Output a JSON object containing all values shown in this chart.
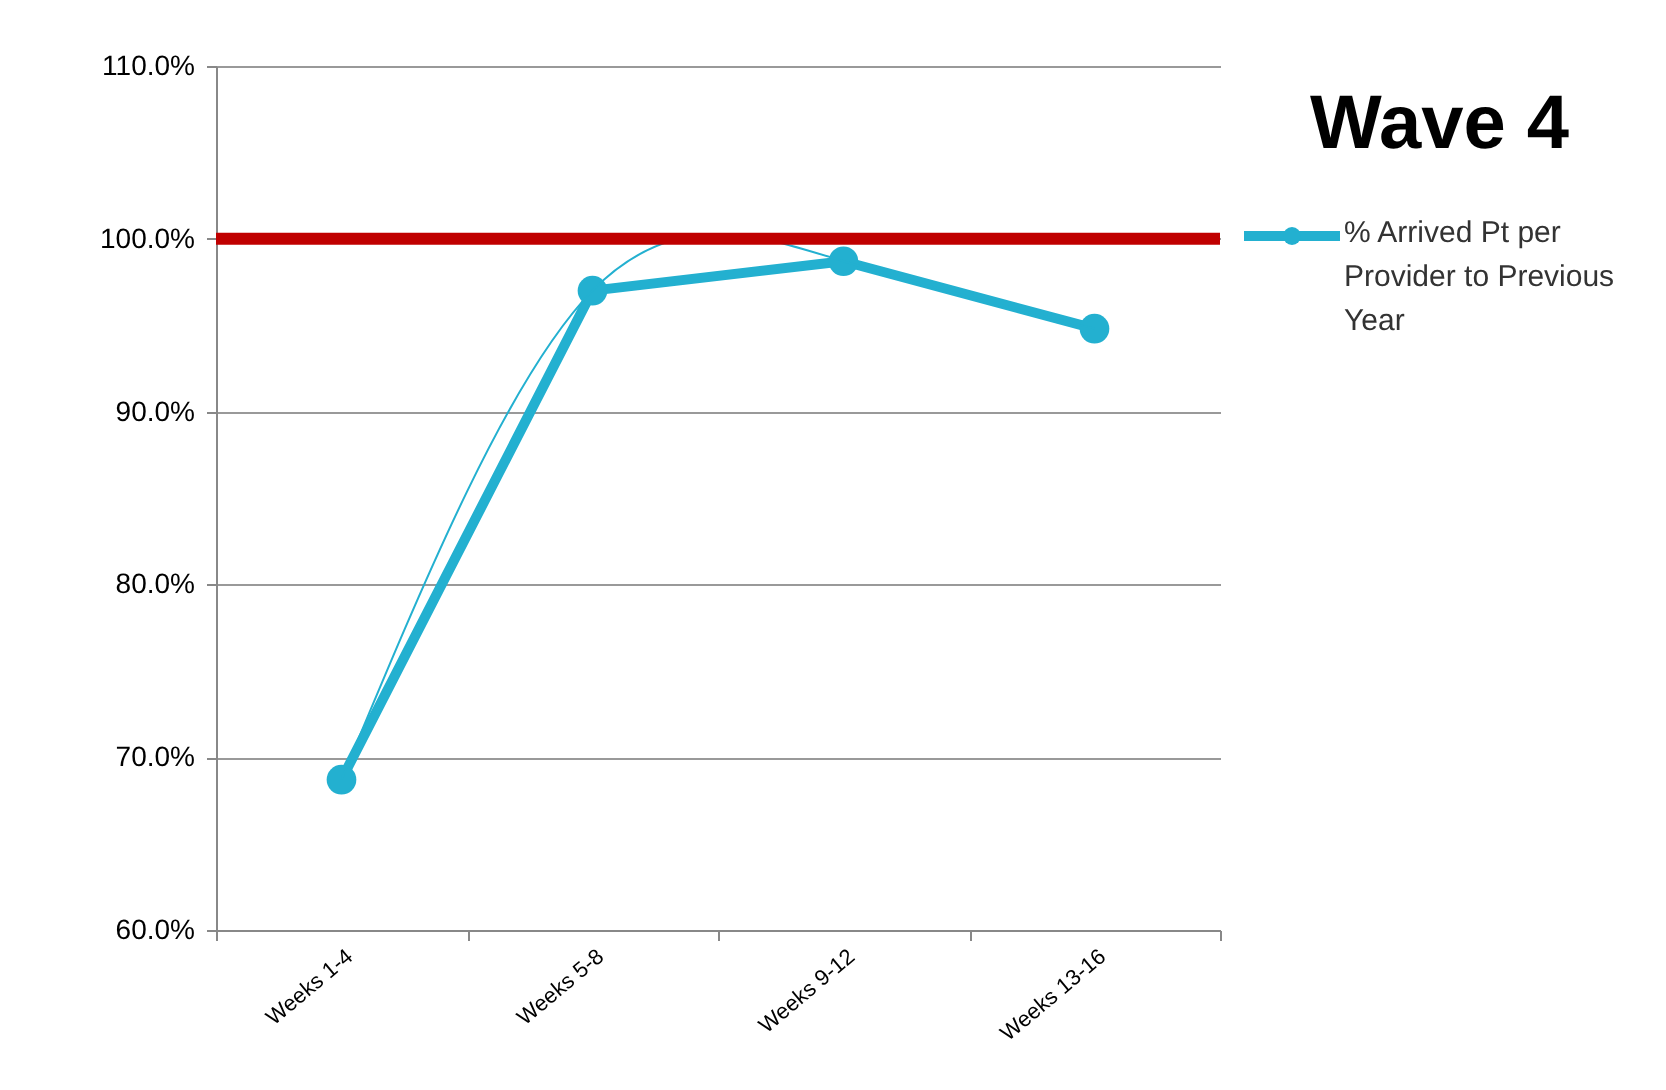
{
  "chart_data": {
    "type": "line",
    "title": "Wave 4",
    "categories": [
      "Weeks 1-4",
      "Weeks 5-8",
      "Weeks 9-12",
      "Weeks 13-16"
    ],
    "series": [
      {
        "name": "% Arrived Pt per Provider to Previous Year",
        "color": "#23b0d0",
        "values": [
          68.7,
          97.0,
          98.7,
          94.8
        ],
        "marker": "circle"
      },
      {
        "type": "line",
        "color": "#23b0d0",
        "values": [
          68.7,
          97.0,
          98.7,
          94.8
        ],
        "marker": "none"
      }
    ],
    "ylim": [
      60,
      110
    ],
    "yticks": [
      {
        "value": 60,
        "label": "60.0%"
      },
      {
        "value": 70,
        "label": "70.0%"
      },
      {
        "value": 80,
        "label": "80.0%"
      },
      {
        "value": 90,
        "label": "90.0%"
      },
      {
        "value": 100,
        "label": "100.0%"
      },
      {
        "value": 110,
        "label": "110.0%"
      }
    ],
    "ref_lines": [
      {
        "axis": "y",
        "value": 100,
        "color": "#c00000"
      }
    ],
    "grid": "y",
    "legend": "right"
  }
}
